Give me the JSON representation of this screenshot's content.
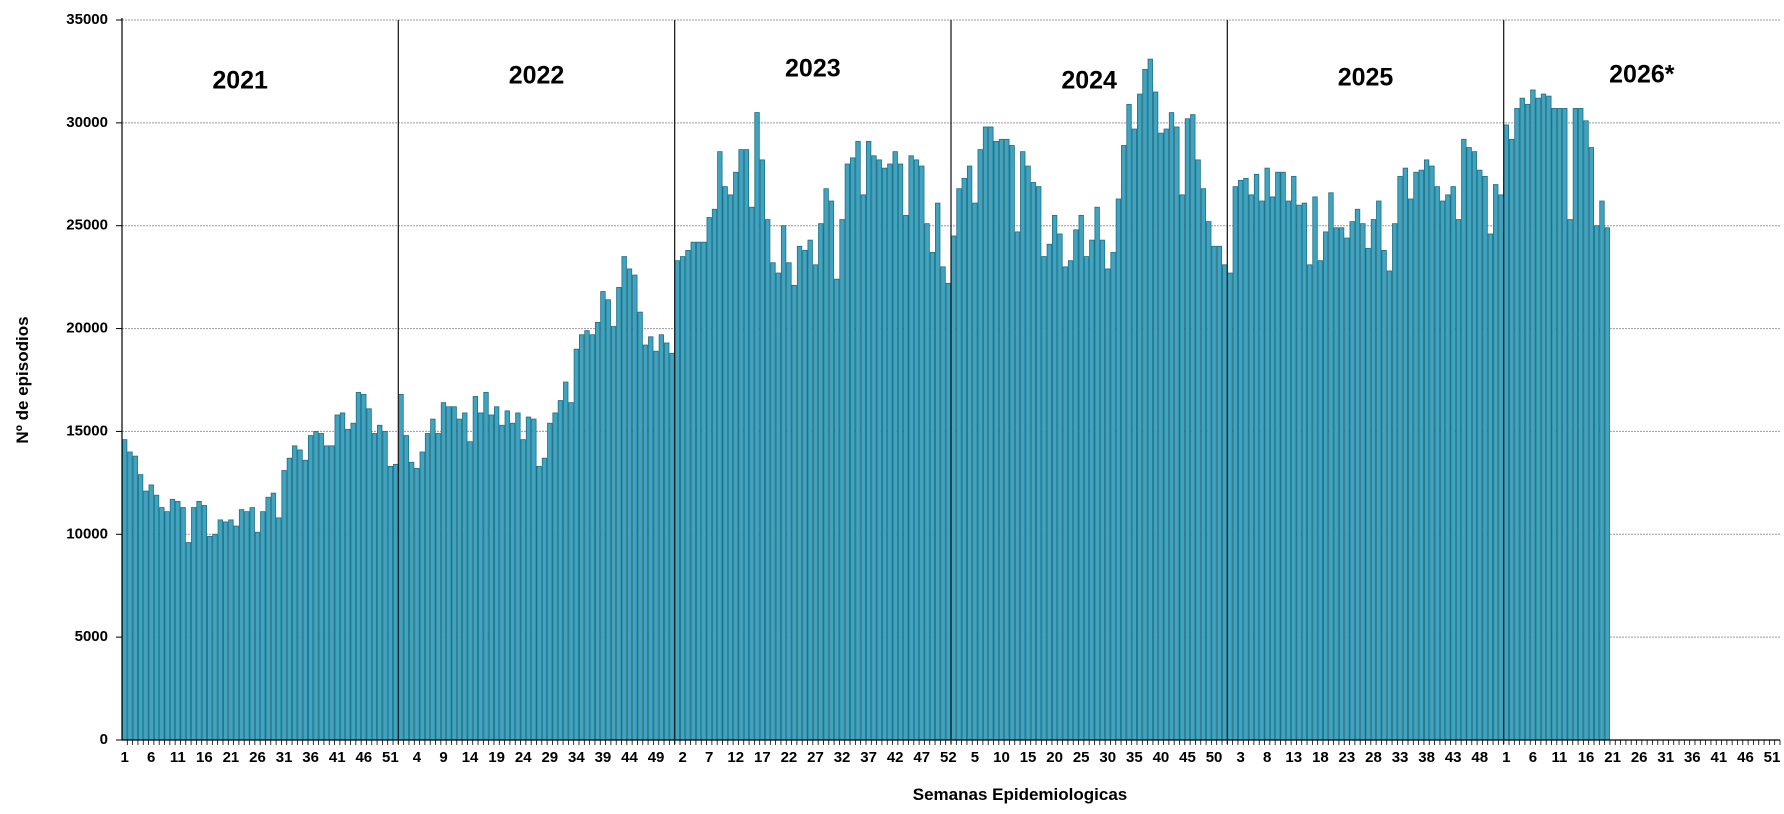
{
  "chart_data": {
    "type": "bar",
    "x_label": "Semanas Epidemiologicas",
    "y_label": "Nº de episodios",
    "annotations": [
      "2021",
      "2022",
      "2023",
      "2024",
      "2025",
      "2026*"
    ],
    "color": "#40a3bf",
    "ylim": [
      0,
      35000
    ],
    "yticks": [
      0,
      5000,
      10000,
      15000,
      20000,
      25000,
      30000,
      35000
    ],
    "grid": true,
    "categories": [
      "1",
      null,
      null,
      null,
      null,
      "6",
      null,
      null,
      null,
      null,
      "11",
      null,
      null,
      null,
      null,
      "16",
      null,
      null,
      null,
      null,
      "21",
      null,
      null,
      null,
      null,
      "26",
      null,
      null,
      null,
      null,
      "31",
      null,
      null,
      null,
      null,
      "36",
      null,
      null,
      null,
      null,
      "41",
      null,
      null,
      null,
      null,
      "46",
      null,
      null,
      null,
      null,
      "51",
      null,
      null,
      null,
      null,
      "4",
      null,
      null,
      null,
      null,
      "9",
      null,
      null,
      null,
      null,
      "14",
      null,
      null,
      null,
      null,
      "19",
      null,
      null,
      null,
      null,
      "24",
      null,
      null,
      null,
      null,
      "29",
      null,
      null,
      null,
      null,
      "34",
      null,
      null,
      null,
      null,
      "39",
      null,
      null,
      null,
      null,
      "44",
      null,
      null,
      null,
      null,
      "49",
      null,
      null,
      null,
      null,
      "2",
      null,
      null,
      null,
      null,
      "7",
      null,
      null,
      null,
      null,
      "12",
      null,
      null,
      null,
      null,
      "17",
      null,
      null,
      null,
      null,
      "22",
      null,
      null,
      null,
      null,
      "27",
      null,
      null,
      null,
      null,
      "32",
      null,
      null,
      null,
      null,
      "37",
      null,
      null,
      null,
      null,
      "42",
      null,
      null,
      null,
      null,
      "47",
      null,
      null,
      null,
      null,
      "52",
      null,
      null,
      null,
      null,
      "5",
      null,
      null,
      null,
      null,
      "10",
      null,
      null,
      null,
      null,
      "15",
      null,
      null,
      null,
      null,
      "20",
      null,
      null,
      null,
      null,
      "25",
      null,
      null,
      null,
      null,
      "30",
      null,
      null,
      null,
      null,
      "35",
      null,
      null,
      null,
      null,
      "40",
      null,
      null,
      null,
      null,
      "45",
      null,
      null,
      null,
      null,
      "50",
      null,
      null,
      null,
      null,
      "3",
      null,
      null,
      null,
      null,
      "8",
      null,
      null,
      null,
      null,
      "13",
      null,
      null,
      null,
      null,
      "18",
      null,
      null,
      null,
      null,
      "23",
      null,
      null,
      null,
      null,
      "28",
      null,
      null,
      null,
      null,
      "33",
      null,
      null,
      null,
      null,
      "38",
      null,
      null,
      null,
      null,
      "43",
      null,
      null,
      null,
      null,
      "48",
      null,
      null,
      null,
      null,
      "1",
      null,
      null,
      null,
      null,
      "6",
      null,
      null,
      null,
      null,
      "11",
      null,
      null,
      null,
      null,
      "16",
      null,
      null,
      null,
      null,
      "21",
      null,
      null,
      null,
      null,
      "26",
      null,
      null,
      null,
      null,
      "31",
      null,
      null,
      null,
      null,
      "36",
      null,
      null,
      null,
      null,
      "41",
      null,
      null,
      null,
      null,
      "46",
      null,
      null,
      null,
      null,
      "51",
      null
    ],
    "values": [
      14600,
      14000,
      13800,
      12900,
      12100,
      12400,
      11900,
      11300,
      11100,
      11700,
      11600,
      11300,
      9600,
      11300,
      11600,
      11400,
      9900,
      10000,
      10700,
      10600,
      10700,
      10400,
      11200,
      11100,
      11300,
      10100,
      11100,
      11800,
      12000,
      10800,
      13100,
      13700,
      14300,
      14100,
      13600,
      14800,
      15000,
      14900,
      14300,
      14300,
      15800,
      15900,
      15100,
      15400,
      16900,
      16800,
      16100,
      14900,
      15300,
      15000,
      13300,
      13400,
      16800,
      14800,
      13500,
      13200,
      14000,
      14900,
      15600,
      14900,
      16400,
      16200,
      16200,
      15600,
      15900,
      14500,
      16700,
      15900,
      16900,
      15800,
      16200,
      15300,
      16000,
      15400,
      15900,
      14600,
      15700,
      15600,
      13300,
      13700,
      15400,
      15900,
      16500,
      17400,
      16400,
      19000,
      19700,
      19900,
      19700,
      20300,
      21800,
      21400,
      20100,
      22000,
      23500,
      22900,
      22600,
      20800,
      19200,
      19600,
      18900,
      19700,
      19300,
      18800,
      23300,
      23500,
      23800,
      24200,
      24200,
      24200,
      25400,
      25800,
      28600,
      26900,
      26500,
      27600,
      28700,
      28700,
      25900,
      30500,
      28200,
      25300,
      23200,
      22700,
      25000,
      23200,
      22100,
      24000,
      23800,
      24300,
      23100,
      25100,
      26800,
      26200,
      22400,
      25300,
      28000,
      28300,
      29100,
      26500,
      29100,
      28400,
      28200,
      27800,
      28000,
      28600,
      28000,
      25500,
      28400,
      28200,
      27900,
      25100,
      23700,
      26100,
      23000,
      22200,
      24500,
      26800,
      27300,
      27900,
      26100,
      28700,
      29800,
      29800,
      29100,
      29200,
      29200,
      28900,
      24700,
      28600,
      27900,
      27100,
      26900,
      23500,
      24100,
      25500,
      24600,
      23000,
      23300,
      24800,
      25500,
      23500,
      24300,
      25900,
      24300,
      22900,
      23700,
      26300,
      28900,
      30900,
      29700,
      31400,
      32600,
      33100,
      31500,
      29500,
      29700,
      30500,
      29800,
      26500,
      30200,
      30400,
      28200,
      26800,
      25200,
      24000,
      24000,
      23100,
      22700,
      26900,
      27200,
      27300,
      26500,
      27500,
      26200,
      27800,
      26400,
      27600,
      27600,
      26200,
      27400,
      26000,
      26100,
      23100,
      26400,
      23300,
      24700,
      26600,
      24900,
      24900,
      24400,
      25200,
      25800,
      25100,
      23900,
      25300,
      26200,
      23800,
      22800,
      25100,
      27400,
      27800,
      26300,
      27600,
      27700,
      28200,
      27900,
      26900,
      26200,
      26500,
      26900,
      25300,
      29200,
      28800,
      28600,
      27700,
      27400,
      24600,
      27000,
      26500,
      29900,
      29200,
      30700,
      31200,
      30900,
      31600,
      31200,
      31400,
      31300,
      30700,
      30700,
      30700,
      25300,
      30700,
      30700,
      30100,
      28800,
      25000,
      26200,
      24900,
      null,
      null,
      null,
      null,
      null,
      null,
      null,
      null,
      null,
      null,
      null,
      null,
      null,
      null,
      null,
      null,
      null,
      null,
      null,
      null,
      null,
      null,
      null,
      null,
      null,
      null,
      null,
      null,
      null,
      null,
      null,
      null
    ]
  }
}
